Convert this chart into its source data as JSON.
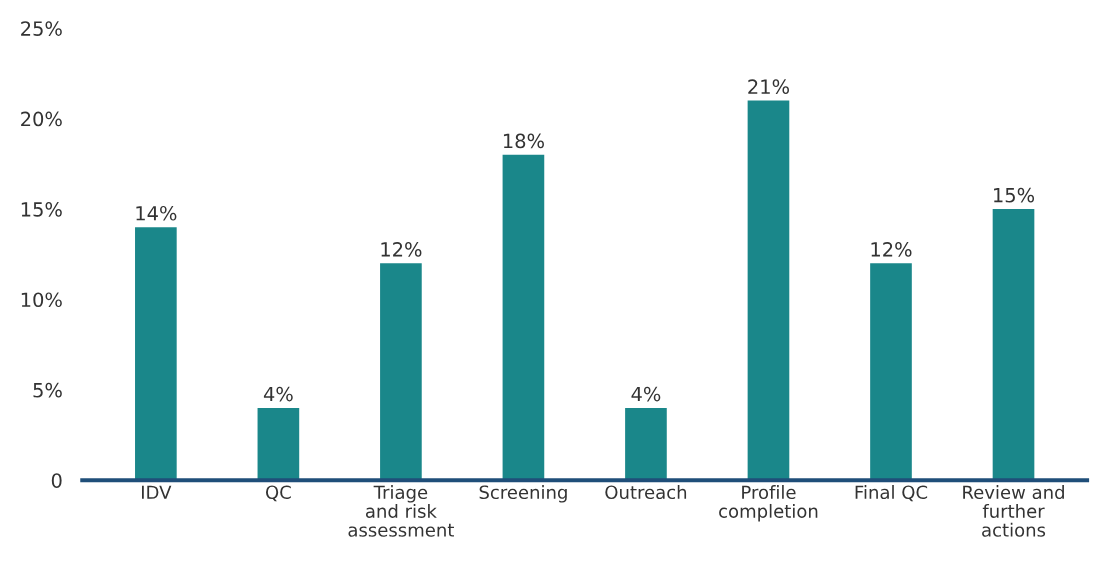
{
  "chart_data": {
    "type": "bar",
    "categories": [
      "IDV",
      "QC",
      "Triage\nand risk\nassessment",
      "Screening",
      "Outreach",
      "Profile\ncompletion",
      "Final QC",
      "Review and\nfurther\nactions"
    ],
    "values": [
      14,
      4,
      12,
      18,
      4,
      21,
      12,
      15
    ],
    "value_labels": [
      "14%",
      "4%",
      "12%",
      "18%",
      "4%",
      "21%",
      "12%",
      "15%"
    ],
    "color": "#1a878a",
    "ylim": [
      0,
      25
    ],
    "yticks": [
      0,
      {
        "value": 5,
        "label": "5%"
      },
      {
        "value": 10,
        "label": "10%"
      },
      {
        "value": 15,
        "label": "15%"
      },
      {
        "value": 20,
        "label": "20%"
      },
      {
        "value": 25,
        "label": "25%"
      }
    ],
    "grid": false,
    "legend": false
  }
}
